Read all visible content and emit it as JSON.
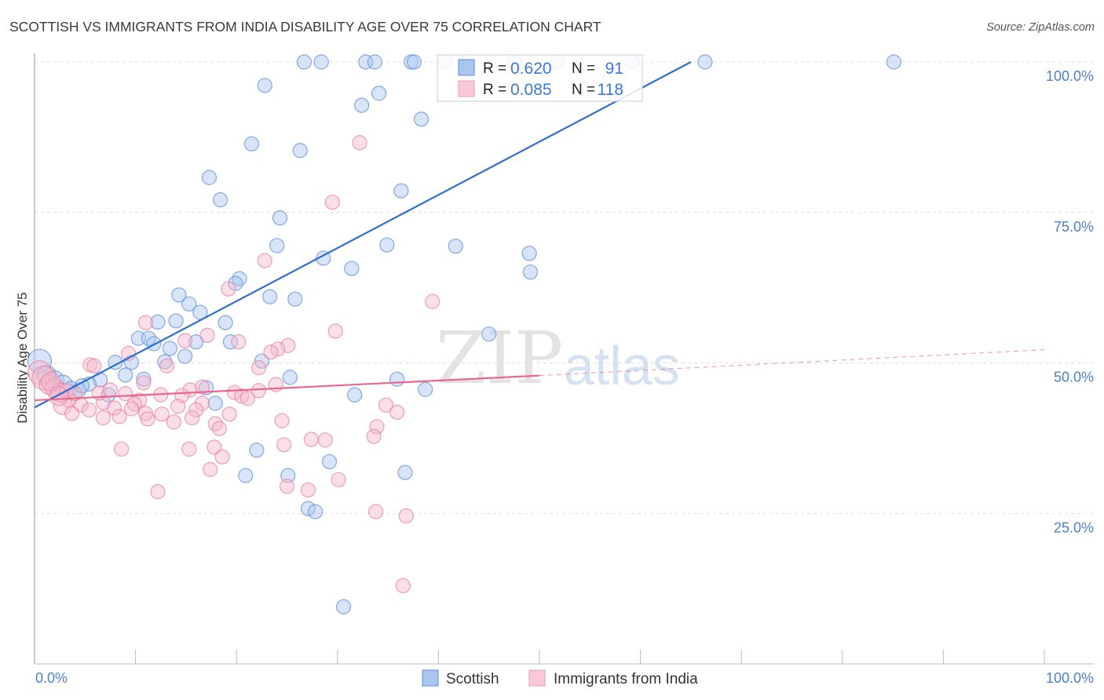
{
  "chart_data": {
    "type": "scatter",
    "title": "SCOTTISH VS IMMIGRANTS FROM INDIA DISABILITY AGE OVER 75 CORRELATION CHART",
    "source": "Source: ZipAtlas.com",
    "xlabel": "",
    "ylabel": "Disability Age Over 75",
    "xlim": [
      0,
      100
    ],
    "ylim": [
      0,
      100
    ],
    "x_tick_labels": [
      "0.0%",
      "100.0%"
    ],
    "y_ticks": [
      25,
      50,
      75,
      100
    ],
    "y_tick_labels": [
      "25.0%",
      "50.0%",
      "75.0%",
      "100.0%"
    ],
    "grid": true,
    "legend_placement": "bottom-center",
    "watermark": "ZIPatlas",
    "colors": {
      "scottish_fill": "#a9c6ef",
      "scottish_stroke": "#5b8fdc",
      "scottish_line": "#2d6fd1",
      "india_fill": "#f5b9cb",
      "india_stroke": "#e8819f",
      "india_line": "#e9678f"
    },
    "stats": [
      {
        "r_label": "R = ",
        "r": "0.620",
        "n_label": "N = ",
        "n": "91"
      },
      {
        "r_label": "R = ",
        "r": "0.085",
        "n_label": "N = ",
        "n": "118"
      }
    ],
    "series": [
      {
        "name": "Scottish",
        "trend": {
          "x0": 0,
          "y0": 42.6,
          "x1": 65,
          "y1": 100,
          "dashed_to": null
        },
        "points": [
          [
            26.7,
            100
          ],
          [
            28.4,
            100
          ],
          [
            32.8,
            100
          ],
          [
            33.7,
            100
          ],
          [
            37.3,
            100
          ],
          [
            37.6,
            100
          ],
          [
            66.4,
            100
          ],
          [
            85.1,
            100
          ],
          [
            40.7,
            100
          ],
          [
            42.7,
            100
          ],
          [
            47.5,
            100
          ],
          [
            51.8,
            100
          ],
          [
            59.2,
            100
          ],
          [
            22.8,
            96.1
          ],
          [
            34.1,
            94.8
          ],
          [
            32.4,
            92.8
          ],
          [
            38.3,
            90.5
          ],
          [
            21.5,
            86.4
          ],
          [
            26.3,
            85.3
          ],
          [
            17.3,
            80.8
          ],
          [
            18.4,
            77.1
          ],
          [
            36.3,
            78.6
          ],
          [
            24.3,
            74.1
          ],
          [
            24.0,
            69.5
          ],
          [
            34.9,
            69.6
          ],
          [
            41.7,
            69.4
          ],
          [
            49.0,
            68.2
          ],
          [
            28.6,
            67.4
          ],
          [
            31.4,
            65.7
          ],
          [
            49.1,
            65.1
          ],
          [
            20.3,
            64.0
          ],
          [
            19.9,
            63.2
          ],
          [
            14.3,
            61.3
          ],
          [
            23.3,
            61.0
          ],
          [
            25.8,
            60.6
          ],
          [
            15.3,
            59.8
          ],
          [
            16.4,
            58.4
          ],
          [
            14.0,
            57.0
          ],
          [
            12.2,
            56.8
          ],
          [
            18.9,
            56.7
          ],
          [
            45.0,
            54.8
          ],
          [
            10.3,
            54.1
          ],
          [
            11.3,
            54.1
          ],
          [
            19.4,
            53.5
          ],
          [
            16.0,
            53.5
          ],
          [
            11.8,
            53.2
          ],
          [
            13.4,
            52.4
          ],
          [
            14.9,
            51.1
          ],
          [
            22.5,
            50.3
          ],
          [
            8.0,
            50.1
          ],
          [
            9.6,
            50.1
          ],
          [
            12.9,
            50.2
          ],
          [
            9.0,
            48.0
          ],
          [
            10.8,
            47.3
          ],
          [
            25.3,
            47.6
          ],
          [
            35.9,
            47.3
          ],
          [
            6.5,
            47.2
          ],
          [
            5.4,
            46.5
          ],
          [
            17.0,
            45.9
          ],
          [
            38.7,
            45.6
          ],
          [
            31.7,
            44.7
          ],
          [
            7.3,
            44.7
          ],
          [
            17.9,
            43.3
          ],
          [
            22.0,
            35.5
          ],
          [
            29.2,
            33.6
          ],
          [
            20.9,
            31.3
          ],
          [
            25.1,
            31.3
          ],
          [
            36.7,
            31.8
          ],
          [
            27.1,
            25.8
          ],
          [
            27.8,
            25.3
          ],
          [
            30.6,
            9.5
          ],
          [
            0.5,
            50.3
          ],
          [
            1.2,
            48.0
          ],
          [
            2.0,
            47.1
          ],
          [
            2.8,
            46.4
          ],
          [
            3.6,
            45.8
          ],
          [
            4.4,
            45.5
          ],
          [
            4.7,
            46.2
          ]
        ]
      },
      {
        "name": "Immigrants from India",
        "trend": {
          "x0": 0,
          "y0": 43.8,
          "x1": 50,
          "y1": 47.9,
          "dashed_to": [
            100,
            52.2
          ]
        },
        "points": [
          [
            32.2,
            86.6
          ],
          [
            29.5,
            76.7
          ],
          [
            22.8,
            67.0
          ],
          [
            39.4,
            60.2
          ],
          [
            19.2,
            62.3
          ],
          [
            29.8,
            55.3
          ],
          [
            11.0,
            56.7
          ],
          [
            14.9,
            53.7
          ],
          [
            17.1,
            54.6
          ],
          [
            20.2,
            53.5
          ],
          [
            25.1,
            52.9
          ],
          [
            24.1,
            52.3
          ],
          [
            23.4,
            51.8
          ],
          [
            9.3,
            51.6
          ],
          [
            13.1,
            49.5
          ],
          [
            22.2,
            49.2
          ],
          [
            5.5,
            49.7
          ],
          [
            5.9,
            49.5
          ],
          [
            10.8,
            46.7
          ],
          [
            23.9,
            46.4
          ],
          [
            16.6,
            46.0
          ],
          [
            15.4,
            45.5
          ],
          [
            19.8,
            45.1
          ],
          [
            22.2,
            45.4
          ],
          [
            9.0,
            44.9
          ],
          [
            12.5,
            44.7
          ],
          [
            14.6,
            44.6
          ],
          [
            20.5,
            44.5
          ],
          [
            21.1,
            44.1
          ],
          [
            3.4,
            43.8
          ],
          [
            10.4,
            43.8
          ],
          [
            6.8,
            43.4
          ],
          [
            16.6,
            43.3
          ],
          [
            9.9,
            43.2
          ],
          [
            2.8,
            43.0
          ],
          [
            4.6,
            43.0
          ],
          [
            34.8,
            43.0
          ],
          [
            14.2,
            42.8
          ],
          [
            7.9,
            42.5
          ],
          [
            9.6,
            42.4
          ],
          [
            5.4,
            42.2
          ],
          [
            16.0,
            42.2
          ],
          [
            35.9,
            41.8
          ],
          [
            3.7,
            41.6
          ],
          [
            11.0,
            41.6
          ],
          [
            19.3,
            41.5
          ],
          [
            12.6,
            41.5
          ],
          [
            8.4,
            41.1
          ],
          [
            6.8,
            40.9
          ],
          [
            15.6,
            40.9
          ],
          [
            11.2,
            40.7
          ],
          [
            24.5,
            40.4
          ],
          [
            13.8,
            40.2
          ],
          [
            17.9,
            39.9
          ],
          [
            18.3,
            39.1
          ],
          [
            33.9,
            39.4
          ],
          [
            33.6,
            37.8
          ],
          [
            27.4,
            37.3
          ],
          [
            28.8,
            37.2
          ],
          [
            8.6,
            35.7
          ],
          [
            15.3,
            35.7
          ],
          [
            17.8,
            36.0
          ],
          [
            24.7,
            36.4
          ],
          [
            18.6,
            34.4
          ],
          [
            17.4,
            32.3
          ],
          [
            30.1,
            30.6
          ],
          [
            25.0,
            29.5
          ],
          [
            27.1,
            28.9
          ],
          [
            12.2,
            28.6
          ],
          [
            33.8,
            25.3
          ],
          [
            36.8,
            24.6
          ],
          [
            36.5,
            13.0
          ],
          [
            0.5,
            48.4
          ],
          [
            0.9,
            47.5
          ],
          [
            1.4,
            46.4
          ],
          [
            2.0,
            45.8
          ],
          [
            2.6,
            45.1
          ],
          [
            1.6,
            46.9
          ],
          [
            3.2,
            45.4
          ],
          [
            4.0,
            44.9
          ],
          [
            2.4,
            44.5
          ],
          [
            6.4,
            45.0
          ],
          [
            7.5,
            45.5
          ]
        ]
      }
    ]
  }
}
